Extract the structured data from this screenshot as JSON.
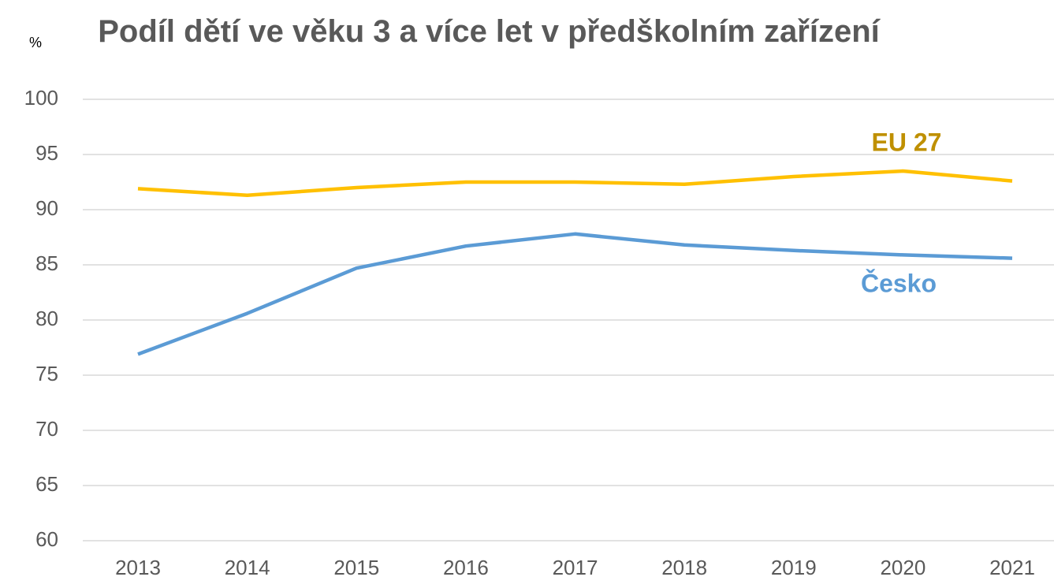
{
  "chart_data": {
    "type": "line",
    "title": "Podíl dětí ve věku 3 a více let v předškolním zařízení",
    "y_label": "%",
    "categories": [
      "2013",
      "2014",
      "2015",
      "2016",
      "2017",
      "2018",
      "2019",
      "2020",
      "2021"
    ],
    "series": [
      {
        "name": "EU 27",
        "color": "#ffc000",
        "values": [
          91.9,
          91.3,
          92.0,
          92.5,
          92.5,
          92.3,
          93.0,
          93.5,
          92.6
        ]
      },
      {
        "name": "Česko",
        "color": "#5b9bd5",
        "values": [
          76.9,
          80.6,
          84.7,
          86.7,
          87.8,
          86.8,
          86.3,
          85.9,
          85.6
        ]
      }
    ],
    "ylim": [
      60,
      100
    ],
    "yticks": [
      60,
      65,
      70,
      75,
      80,
      85,
      90,
      95,
      100
    ],
    "grid": true
  }
}
